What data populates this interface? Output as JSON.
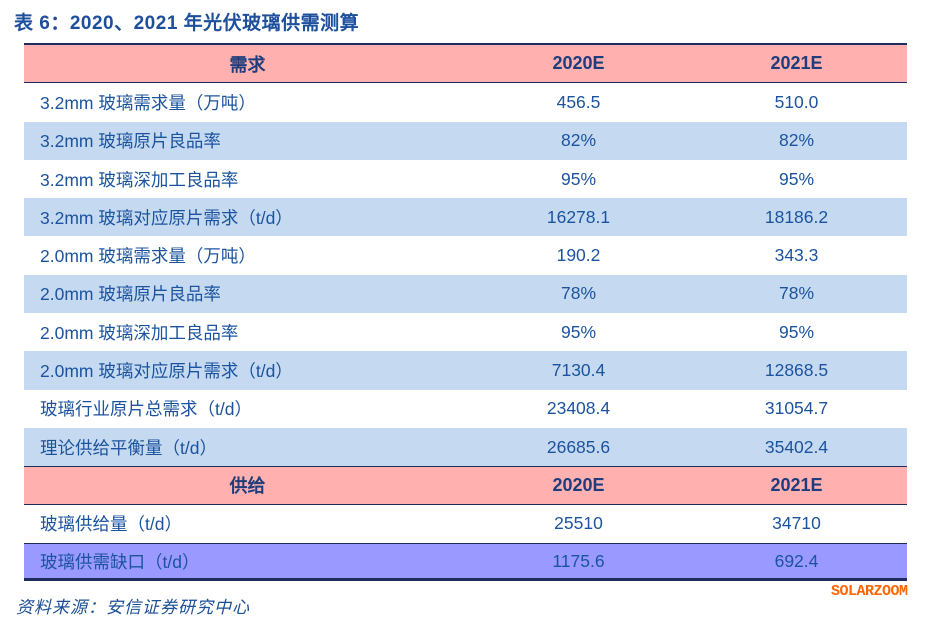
{
  "title": "表 6：2020、2021 年光伏玻璃供需测算",
  "table": {
    "demand_header": {
      "label": "需求",
      "col_2020": "2020E",
      "col_2021": "2021E"
    },
    "supply_header": {
      "label": "供给",
      "col_2020": "2020E",
      "col_2021": "2021E"
    },
    "rows": [
      {
        "label": "3.2mm 玻璃需求量（万吨）",
        "y2020": "456.5",
        "y2021": "510.0"
      },
      {
        "label": "3.2mm 玻璃原片良品率",
        "y2020": "82%",
        "y2021": "82%"
      },
      {
        "label": "3.2mm 玻璃深加工良品率",
        "y2020": "95%",
        "y2021": "95%"
      },
      {
        "label": "3.2mm 玻璃对应原片需求（t/d）",
        "y2020": "16278.1",
        "y2021": "18186.2"
      },
      {
        "label": "2.0mm 玻璃需求量（万吨）",
        "y2020": "190.2",
        "y2021": "343.3"
      },
      {
        "label": "2.0mm 玻璃原片良品率",
        "y2020": "78%",
        "y2021": "78%"
      },
      {
        "label": "2.0mm 玻璃深加工良品率",
        "y2020": "95%",
        "y2021": "95%"
      },
      {
        "label": "2.0mm 玻璃对应原片需求（t/d）",
        "y2020": "7130.4",
        "y2021": "12868.5"
      },
      {
        "label": "玻璃行业原片总需求（t/d）",
        "y2020": "23408.4",
        "y2021": "31054.7"
      },
      {
        "label": "理论供给平衡量（t/d）",
        "y2020": "26685.6",
        "y2021": "35402.4"
      },
      {
        "label": "玻璃供给量（t/d）",
        "y2020": "25510",
        "y2021": "34710"
      },
      {
        "label": "玻璃供需缺口（t/d）",
        "y2020": "1175.6",
        "y2021": "692.4"
      }
    ]
  },
  "footer": {
    "source": "资料来源：安信证券研究中心",
    "watermark": "SOLARZOOM"
  },
  "colors": {
    "header_pink": "#ffb0af",
    "row_blue": "#c5d9f1",
    "gap_purple": "#9999ff",
    "text_blue": "#1b539f",
    "border_navy": "#1f2d5e",
    "watermark_orange": "#ff6600"
  }
}
